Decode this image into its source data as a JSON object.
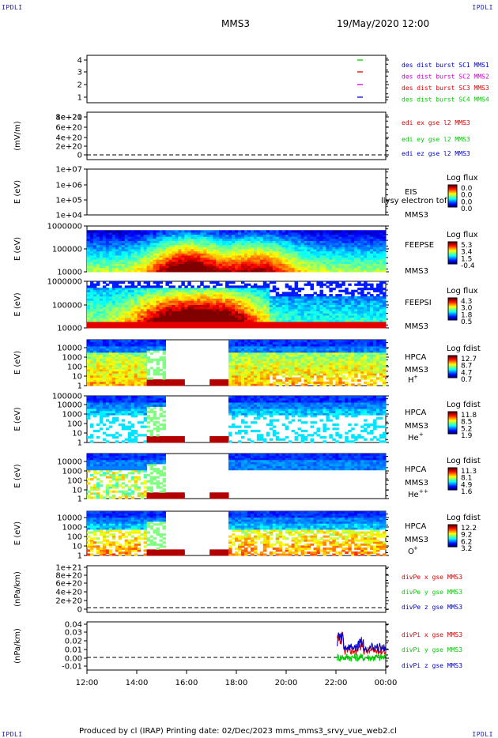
{
  "corner_label": "IPDLI",
  "header": {
    "spacecraft": "MMS3",
    "datetime": "19/May/2020 12:00"
  },
  "footer": "Produced by cl (IRAP)   Printing date: 02/Dec/2023   mms_mms3_srvy_vue_web2.cl",
  "colors": {
    "blue": "#0000cc",
    "magenta": "#cc00cc",
    "red": "#dd0000",
    "green": "#00cc00"
  },
  "chart_data": [
    {
      "type": "line",
      "id": "availability",
      "ylabel": "",
      "ylim": [
        0.5,
        4.5
      ],
      "yticks": [
        "1",
        "2",
        "3",
        "4"
      ],
      "series": [
        {
          "name": "des dist burst SC1 MMS1",
          "color": "#0000cc",
          "y": 1
        },
        {
          "name": "des dist burst SC2 MMS2",
          "color": "#cc00cc",
          "y": 2
        },
        {
          "name": "des dist burst SC3 MMS3",
          "color": "#dd0000",
          "y": 3
        },
        {
          "name": "des dist burst SC4 MMS4",
          "color": "#00cc00",
          "y": 4
        }
      ]
    },
    {
      "type": "line",
      "id": "edi-e",
      "ylabel": "(mV/m)",
      "yticks": [
        "0",
        "2e+20",
        "4e+20",
        "6e+20",
        "8e+20",
        "1e+21"
      ],
      "series": [
        {
          "name": "edi ex gse l2 MMS3",
          "color": "#dd0000"
        },
        {
          "name": "edi ey gse l2 MMS3",
          "color": "#00cc00"
        },
        {
          "name": "edi ez gse l2 MMS3",
          "color": "#0000cc"
        }
      ]
    },
    {
      "type": "heatmap",
      "id": "eis",
      "ylabel": "E (eV)",
      "yticks": [
        "1e+04",
        "1e+05",
        "1e+06",
        "1e+07"
      ],
      "labels": [
        "EIS",
        "MMS3"
      ],
      "overlay_text": "llysy electron tof",
      "colorbar": {
        "title": "Log flux",
        "ticks": [
          "0.0",
          "0.0",
          "0.0",
          "0.0"
        ]
      }
    },
    {
      "type": "heatmap",
      "id": "feepse",
      "ylabel": "E (eV)",
      "yticks": [
        "10000",
        "100000",
        "1000000"
      ],
      "labels": [
        "FEEPSE",
        "MMS3"
      ],
      "colorbar": {
        "title": "Log flux",
        "ticks": [
          "5.3",
          "3.4",
          "1.5",
          "-0.4"
        ]
      }
    },
    {
      "type": "heatmap",
      "id": "feepsi",
      "ylabel": "E (eV)",
      "yticks": [
        "10000",
        "100000",
        "1000000"
      ],
      "labels": [
        "FEEPSI",
        "MMS3"
      ],
      "colorbar": {
        "title": "Log flux",
        "ticks": [
          "4.3",
          "3.0",
          "1.8",
          "0.5"
        ]
      }
    },
    {
      "type": "heatmap",
      "id": "hpca-h",
      "ylabel": "E (eV)",
      "yticks": [
        "1",
        "10",
        "100",
        "1000",
        "10000"
      ],
      "labels": [
        "HPCA",
        "MMS3",
        "H",
        "+"
      ],
      "colorbar": {
        "title": "Log fdist",
        "ticks": [
          "12.7",
          "8.7",
          "4.7",
          "0.7"
        ]
      }
    },
    {
      "type": "heatmap",
      "id": "hpca-he",
      "ylabel": "E (eV)",
      "yticks": [
        "1",
        "10",
        "100",
        "1000",
        "10000",
        "100000"
      ],
      "labels": [
        "HPCA",
        "MMS3",
        "He",
        "+"
      ],
      "colorbar": {
        "title": "Log fdist",
        "ticks": [
          "11.8",
          "8.5",
          "5.2",
          "1.9"
        ]
      }
    },
    {
      "type": "heatmap",
      "id": "hpca-he2",
      "ylabel": "E (eV)",
      "yticks": [
        "1",
        "10",
        "100",
        "1000",
        "10000"
      ],
      "labels": [
        "HPCA",
        "MMS3",
        "He",
        "++"
      ],
      "colorbar": {
        "title": "Log fdist",
        "ticks": [
          "11.3",
          "8.1",
          "4.9",
          "1.6"
        ]
      }
    },
    {
      "type": "heatmap",
      "id": "hpca-o",
      "ylabel": "E (eV)",
      "yticks": [
        "1",
        "10",
        "100",
        "1000",
        "10000"
      ],
      "labels": [
        "HPCA",
        "MMS3",
        "O",
        "+"
      ],
      "colorbar": {
        "title": "Log fdist",
        "ticks": [
          "12.2",
          "9.2",
          "6.2",
          "3.2"
        ]
      }
    },
    {
      "type": "line",
      "id": "divpe",
      "ylabel": "(nPa/km)",
      "yticks": [
        "0",
        "2e+20",
        "4e+20",
        "6e+20",
        "8e+20",
        "1e+21"
      ],
      "series": [
        {
          "name": "divPe x gse MMS3",
          "color": "#dd0000"
        },
        {
          "name": "divPe y gse MMS3",
          "color": "#00cc00"
        },
        {
          "name": "divPe z gse MMS3",
          "color": "#0000cc"
        }
      ]
    },
    {
      "type": "line",
      "id": "divpi",
      "ylabel": "(nPa/km)",
      "yticks": [
        "-0.01",
        "0.00",
        "0.01",
        "0.02",
        "0.03",
        "0.04"
      ],
      "ylim": [
        -0.015,
        0.042
      ],
      "series": [
        {
          "name": "divPi x gse MMS3",
          "color": "#dd0000"
        },
        {
          "name": "divPi y gse MMS3",
          "color": "#00cc00"
        },
        {
          "name": "divPi z gse MMS3",
          "color": "#0000cc"
        }
      ]
    }
  ],
  "time_axis": {
    "ticks": [
      "12:00",
      "14:00",
      "16:00",
      "18:00",
      "20:00",
      "22:00",
      "00:00"
    ]
  }
}
